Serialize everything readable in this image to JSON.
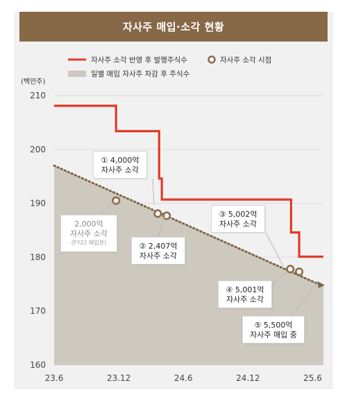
{
  "title": "자사주 매입·소각 현황",
  "colors": {
    "banner": "#876847",
    "line": "#e13b2b",
    "dotted": "#7a6648",
    "area": "#cdc9bf",
    "marker": "#8a6c4a"
  },
  "chart_data": {
    "type": "line",
    "title": "자사주 매입·소각 현황",
    "ylabel": "(백만주)",
    "ylim": [
      160,
      210
    ],
    "yticks": [
      "160",
      "170",
      "180",
      "190",
      "200",
      "210"
    ],
    "xticks": [
      "23.6",
      "23.12",
      "24.6",
      "24.12",
      "25.6"
    ],
    "legend": {
      "line": "자사주 소각 반영 후 발행주식수",
      "marker": "자사주 소각 시점",
      "area": "일별 매입 자사주 차감 후 주식수"
    },
    "series": [
      {
        "name": "자사주 소각 반영 후 발행주식수",
        "x": [
          0,
          0.23,
          0.23,
          0.39,
          0.39,
          0.4,
          0.4,
          0.88,
          0.88,
          0.91,
          0.91,
          1.0
        ],
        "y": [
          208.1,
          208.1,
          203.4,
          203.4,
          194.6,
          194.6,
          190.7,
          190.7,
          184.6,
          184.6,
          180.1,
          180.1
        ]
      },
      {
        "name": "일별 매입 자사주 차감 후 주식수",
        "x": [
          0,
          1.0
        ],
        "y": [
          197.0,
          174.8
        ]
      }
    ],
    "markers": [
      {
        "x": 0.23,
        "y": 190.5
      },
      {
        "x": 0.385,
        "y": 188.1
      },
      {
        "x": 0.418,
        "y": 187.7
      },
      {
        "x": 0.877,
        "y": 177.8
      },
      {
        "x": 0.91,
        "y": 177.3
      }
    ],
    "annotations": [
      {
        "id": "c1",
        "line1": "① 4,000억",
        "line2": "자사주 소각"
      },
      {
        "id": "c0",
        "line1": "2,000억",
        "line2": "자사주 소각",
        "line3": "(FY22 매입분)"
      },
      {
        "id": "c2",
        "line1": "② 2,407억",
        "line2": "자사주 소각"
      },
      {
        "id": "c3",
        "line1": "③ 5,002억",
        "line2": "자사주 소각"
      },
      {
        "id": "c4",
        "line1": "④ 5,001억",
        "line2": "자사주 소각"
      },
      {
        "id": "c5",
        "line1": "⑤ 5,500억",
        "line2": "자사주 매입 중"
      }
    ]
  }
}
